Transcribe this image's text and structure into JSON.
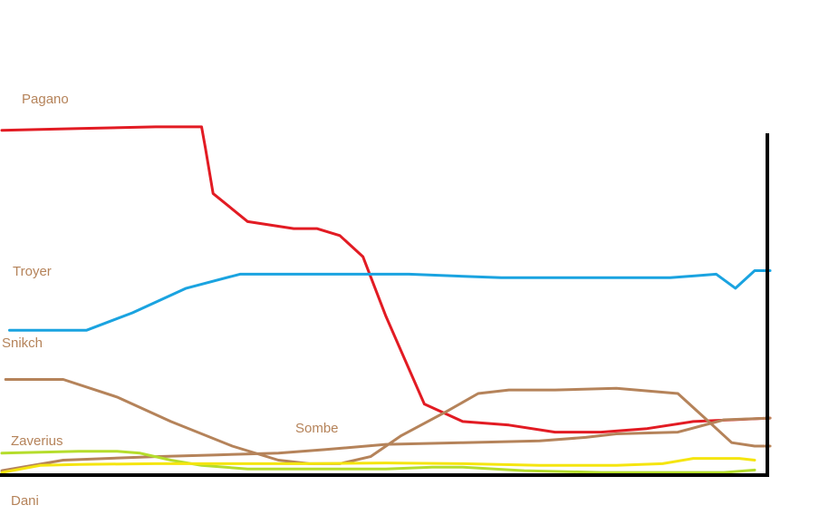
{
  "chart_data": {
    "type": "line",
    "title": "",
    "xlabel": "",
    "ylabel": "",
    "grid": false,
    "legend": "inline labels at left of each series",
    "xlim": [
      0,
      1
    ],
    "ylim": [
      0,
      1
    ],
    "series": [
      {
        "name": "Pagano",
        "color": "#e21b23",
        "points": [
          [
            0,
            0.98
          ],
          [
            0.1,
            0.985
          ],
          [
            0.2,
            0.99
          ],
          [
            0.26,
            0.99
          ],
          [
            0.265,
            0.93
          ],
          [
            0.275,
            0.8
          ],
          [
            0.32,
            0.72
          ],
          [
            0.38,
            0.7
          ],
          [
            0.41,
            0.7
          ],
          [
            0.44,
            0.68
          ],
          [
            0.47,
            0.62
          ],
          [
            0.5,
            0.45
          ],
          [
            0.53,
            0.3
          ],
          [
            0.55,
            0.2
          ],
          [
            0.6,
            0.15
          ],
          [
            0.66,
            0.14
          ],
          [
            0.72,
            0.12
          ],
          [
            0.78,
            0.12
          ],
          [
            0.84,
            0.13
          ],
          [
            0.9,
            0.15
          ],
          [
            1,
            0.16
          ]
        ]
      },
      {
        "name": "Troyer",
        "color": "#1aa3e0",
        "points": [
          [
            0.01,
            0.41
          ],
          [
            0.11,
            0.41
          ],
          [
            0.17,
            0.46
          ],
          [
            0.24,
            0.53
          ],
          [
            0.31,
            0.57
          ],
          [
            0.42,
            0.57
          ],
          [
            0.53,
            0.57
          ],
          [
            0.65,
            0.56
          ],
          [
            0.77,
            0.56
          ],
          [
            0.87,
            0.56
          ],
          [
            0.93,
            0.57
          ],
          [
            0.955,
            0.53
          ],
          [
            0.98,
            0.58
          ],
          [
            1,
            0.58
          ]
        ]
      },
      {
        "name": "Snikch",
        "color": "#b5835a",
        "points": [
          [
            0.005,
            0.27
          ],
          [
            0.08,
            0.27
          ],
          [
            0.15,
            0.22
          ],
          [
            0.22,
            0.15
          ],
          [
            0.3,
            0.08
          ],
          [
            0.36,
            0.04
          ],
          [
            0.4,
            0.03
          ],
          [
            0.44,
            0.03
          ],
          [
            0.48,
            0.05
          ],
          [
            0.52,
            0.11
          ],
          [
            0.58,
            0.18
          ],
          [
            0.62,
            0.23
          ],
          [
            0.66,
            0.24
          ],
          [
            0.72,
            0.24
          ],
          [
            0.8,
            0.245
          ],
          [
            0.88,
            0.23
          ],
          [
            0.92,
            0.15
          ],
          [
            0.95,
            0.09
          ],
          [
            0.98,
            0.08
          ],
          [
            1,
            0.08
          ]
        ]
      },
      {
        "name": "Sombe",
        "color": "#b5835a",
        "points": [
          [
            0,
            0.01
          ],
          [
            0.08,
            0.04
          ],
          [
            0.2,
            0.05
          ],
          [
            0.28,
            0.055
          ],
          [
            0.36,
            0.06
          ],
          [
            0.42,
            0.07
          ],
          [
            0.5,
            0.085
          ],
          [
            0.6,
            0.09
          ],
          [
            0.7,
            0.095
          ],
          [
            0.76,
            0.105
          ],
          [
            0.8,
            0.115
          ],
          [
            0.88,
            0.12
          ],
          [
            0.94,
            0.155
          ],
          [
            1,
            0.16
          ]
        ]
      },
      {
        "name": "Zaverius",
        "color": "#b5dd2c",
        "points": [
          [
            0,
            0.06
          ],
          [
            0.1,
            0.065
          ],
          [
            0.15,
            0.065
          ],
          [
            0.18,
            0.06
          ],
          [
            0.22,
            0.04
          ],
          [
            0.26,
            0.025
          ],
          [
            0.32,
            0.015
          ],
          [
            0.4,
            0.015
          ],
          [
            0.5,
            0.015
          ],
          [
            0.56,
            0.02
          ],
          [
            0.6,
            0.02
          ],
          [
            0.68,
            0.01
          ],
          [
            0.78,
            0.005
          ],
          [
            0.86,
            0.005
          ],
          [
            0.94,
            0.005
          ],
          [
            0.98,
            0.012
          ]
        ]
      },
      {
        "name": "Dani",
        "color": "#f5e50f",
        "points": [
          [
            0,
            0.005
          ],
          [
            0.05,
            0.025
          ],
          [
            0.1,
            0.028
          ],
          [
            0.2,
            0.03
          ],
          [
            0.3,
            0.03
          ],
          [
            0.4,
            0.03
          ],
          [
            0.5,
            0.032
          ],
          [
            0.6,
            0.03
          ],
          [
            0.7,
            0.025
          ],
          [
            0.8,
            0.025
          ],
          [
            0.86,
            0.03
          ],
          [
            0.9,
            0.045
          ],
          [
            0.96,
            0.045
          ],
          [
            0.98,
            0.04
          ]
        ]
      }
    ],
    "labels": [
      {
        "series": "Pagano",
        "text": "Pagano",
        "color": "#b5835a"
      },
      {
        "series": "Troyer",
        "text": "Troyer",
        "color": "#b5835a"
      },
      {
        "series": "Snikch",
        "text": "Snikch",
        "color": "#b5835a"
      },
      {
        "series": "Sombe",
        "text": "Sombe",
        "color": "#b5835a"
      },
      {
        "series": "Zaverius",
        "text": "Zaverius",
        "color": "#b5835a"
      },
      {
        "series": "Dani",
        "text": "Dani",
        "color": "#b5835a"
      }
    ]
  }
}
